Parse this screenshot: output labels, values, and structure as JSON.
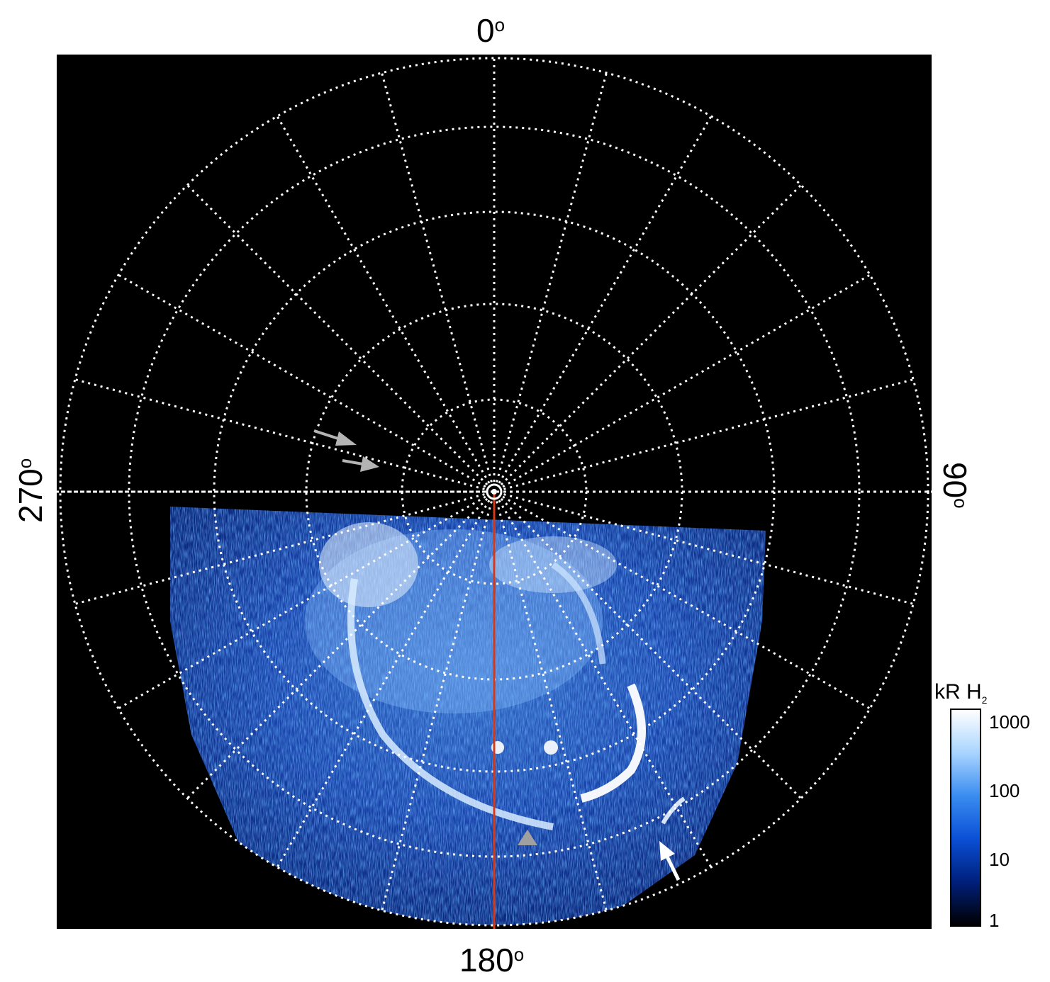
{
  "axes": {
    "top": "0",
    "bottom": "180",
    "left": "270",
    "right": "90",
    "degree_symbol": "o"
  },
  "colorbar": {
    "unit": "kR H",
    "unit_subscript": "2",
    "ticks": [
      "1000",
      "100",
      "10",
      "1"
    ],
    "scale": "log",
    "range": [
      1,
      1000
    ],
    "colors": [
      "#000000",
      "#001f7a",
      "#0a4fd6",
      "#3a8cf0",
      "#a8d4ff",
      "#ffffff"
    ]
  },
  "colors": {
    "background": "#000000",
    "grid": "#ffffff",
    "meridian_line": "#d23a1a",
    "arrow_white": "#ffffff",
    "arrow_grey": "#b4b4b4"
  },
  "annotations": [
    "white-arrow",
    "grey-arrow-1",
    "grey-arrow-2",
    "grey-triangle"
  ]
}
